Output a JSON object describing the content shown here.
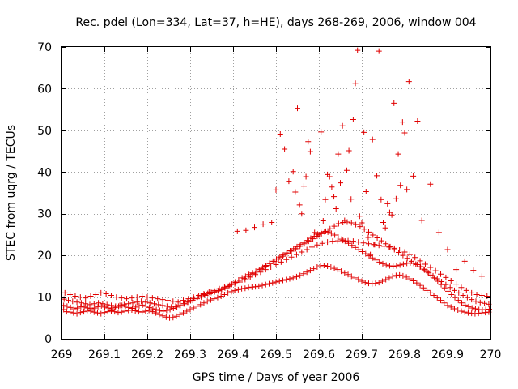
{
  "chart_data": {
    "type": "scatter",
    "title": "Rec. pdel (Lon=334, Lat=37, h=HE), days 268-269, 2006, window 004",
    "xlabel": "GPS time / Days of year 2006",
    "ylabel": "STEC from uqrg / TECUs",
    "xlim": [
      269,
      270
    ],
    "ylim": [
      0,
      70
    ],
    "xticks": [
      269,
      269.1,
      269.2,
      269.3,
      269.4,
      269.5,
      269.6,
      269.7,
      269.8,
      269.9,
      270
    ],
    "xtick_labels": [
      "269",
      "269.1",
      "269.2",
      "269.3",
      "269.4",
      "269.5",
      "269.6",
      "269.7",
      "269.8",
      "269.9",
      "270"
    ],
    "yticks": [
      0,
      10,
      20,
      30,
      40,
      50,
      60,
      70
    ],
    "ytick_labels": [
      "0",
      "10",
      "20",
      "30",
      "40",
      "50",
      "60",
      "70"
    ],
    "grid": true,
    "marker": "+",
    "color": "#e00000",
    "series": [
      {
        "name": "STEC",
        "x": [
          269.005,
          269.012,
          269.02,
          269.028,
          269.036,
          269.044,
          269.052,
          269.06,
          269.068,
          269.076,
          269.084,
          269.092,
          269.1,
          269.108,
          269.116,
          269.124,
          269.132,
          269.14,
          269.148,
          269.156,
          269.164,
          269.172,
          269.18,
          269.188,
          269.196,
          269.204,
          269.212,
          269.22,
          269.228,
          269.236,
          269.244,
          269.252,
          269.26,
          269.268,
          269.276,
          269.284,
          269.292,
          269.3,
          269.308,
          269.316,
          269.324,
          269.332,
          269.34,
          269.348,
          269.356,
          269.364,
          269.372,
          269.38,
          269.388,
          269.396,
          269.404,
          269.412,
          269.42,
          269.428,
          269.436,
          269.444,
          269.452,
          269.46,
          269.468,
          269.476,
          269.484,
          269.492,
          269.5,
          269.508,
          269.516,
          269.524,
          269.532,
          269.54,
          269.548,
          269.556,
          269.564,
          269.572,
          269.58,
          269.588,
          269.596,
          269.604,
          269.612,
          269.62,
          269.628,
          269.636,
          269.644,
          269.652,
          269.66,
          269.668,
          269.676,
          269.684,
          269.692,
          269.7,
          269.708,
          269.716,
          269.724,
          269.732,
          269.74,
          269.748,
          269.756,
          269.764,
          269.772,
          269.78,
          269.788,
          269.796,
          269.804,
          269.812,
          269.82,
          269.828,
          269.836,
          269.844,
          269.852,
          269.86,
          269.868,
          269.876,
          269.884,
          269.892,
          269.9,
          269.908,
          269.916,
          269.924,
          269.932,
          269.94,
          269.948,
          269.956,
          269.964,
          269.972,
          269.98,
          269.988,
          269.996,
          269.005,
          269.013,
          269.021,
          269.029,
          269.037,
          269.045,
          269.053,
          269.061,
          269.069,
          269.077,
          269.085,
          269.093,
          269.101,
          269.109,
          269.117,
          269.125,
          269.133,
          269.141,
          269.149,
          269.157,
          269.165,
          269.173,
          269.181,
          269.189,
          269.197,
          269.205,
          269.213,
          269.221,
          269.229,
          269.237,
          269.245,
          269.253,
          269.261,
          269.269,
          269.277,
          269.285,
          269.293,
          269.301,
          269.309,
          269.317,
          269.325,
          269.333,
          269.341,
          269.349,
          269.357,
          269.365,
          269.373,
          269.381,
          269.389,
          269.397,
          269.405,
          269.413,
          269.421,
          269.429,
          269.437,
          269.445,
          269.453,
          269.461,
          269.469,
          269.477,
          269.485,
          269.493,
          269.501,
          269.509,
          269.517,
          269.525,
          269.533,
          269.541,
          269.549,
          269.557,
          269.565,
          269.573,
          269.581,
          269.589,
          269.597,
          269.605,
          269.613,
          269.621,
          269.629,
          269.637,
          269.645,
          269.653,
          269.661,
          269.669,
          269.677,
          269.685,
          269.693,
          269.701,
          269.709,
          269.717,
          269.725,
          269.733,
          269.741,
          269.749,
          269.757,
          269.765,
          269.773,
          269.781,
          269.789,
          269.797,
          269.805,
          269.813,
          269.821,
          269.829,
          269.837,
          269.845,
          269.853,
          269.861,
          269.869,
          269.877,
          269.885,
          269.893,
          269.901,
          269.909,
          269.917,
          269.925,
          269.933,
          269.941,
          269.949,
          269.957,
          269.965,
          269.973,
          269.981,
          269.989,
          269.997,
          269.006,
          269.016,
          269.026,
          269.036,
          269.046,
          269.056,
          269.066,
          269.076,
          269.086,
          269.096,
          269.106,
          269.116,
          269.126,
          269.136,
          269.146,
          269.156,
          269.166,
          269.176,
          269.186,
          269.196,
          269.206,
          269.216,
          269.226,
          269.236,
          269.246,
          269.256,
          269.266,
          269.276,
          269.286,
          269.296,
          269.306,
          269.316,
          269.326,
          269.336,
          269.346,
          269.356,
          269.366,
          269.376,
          269.386,
          269.396,
          269.406,
          269.416,
          269.426,
          269.436,
          269.446,
          269.456,
          269.466,
          269.476,
          269.486,
          269.496,
          269.506,
          269.516,
          269.526,
          269.536,
          269.546,
          269.556,
          269.566,
          269.576,
          269.586,
          269.596,
          269.606,
          269.616,
          269.626,
          269.636,
          269.646,
          269.656,
          269.666,
          269.676,
          269.686,
          269.696,
          269.706,
          269.716,
          269.726,
          269.736,
          269.746,
          269.756,
          269.766,
          269.776,
          269.786,
          269.796,
          269.806,
          269.816,
          269.826,
          269.836,
          269.846,
          269.856,
          269.866,
          269.876,
          269.886,
          269.896,
          269.906,
          269.916,
          269.926,
          269.936,
          269.946,
          269.956,
          269.966,
          269.976,
          269.986,
          269.996,
          269.008,
          269.02,
          269.032,
          269.044,
          269.056,
          269.068,
          269.08,
          269.092,
          269.104,
          269.116,
          269.128,
          269.14,
          269.152,
          269.164,
          269.176,
          269.188,
          269.2,
          269.212,
          269.224,
          269.236,
          269.248,
          269.26,
          269.272,
          269.284,
          269.296,
          269.308,
          269.32,
          269.332,
          269.344,
          269.356,
          269.368,
          269.38,
          269.392,
          269.404,
          269.416,
          269.428,
          269.44,
          269.452,
          269.464,
          269.476,
          269.488,
          269.5,
          269.512,
          269.524,
          269.536,
          269.548,
          269.56,
          269.572,
          269.584,
          269.596,
          269.608,
          269.62,
          269.632,
          269.644,
          269.656,
          269.668,
          269.68,
          269.692,
          269.704,
          269.716,
          269.728,
          269.74,
          269.752,
          269.764,
          269.776,
          269.788,
          269.8,
          269.812,
          269.824,
          269.836,
          269.848,
          269.86,
          269.872,
          269.884,
          269.896,
          269.908,
          269.92,
          269.932,
          269.944,
          269.956,
          269.968,
          269.98,
          269.992,
          269.41,
          269.43,
          269.45,
          269.47,
          269.49,
          269.5,
          269.51,
          269.52,
          269.53,
          269.54,
          269.545,
          269.55,
          269.555,
          269.56,
          269.565,
          269.57,
          269.575,
          269.58,
          269.59,
          269.6,
          269.605,
          269.61,
          269.615,
          269.62,
          269.625,
          269.63,
          269.635,
          269.64,
          269.645,
          269.65,
          269.655,
          269.66,
          269.665,
          269.67,
          269.675,
          269.68,
          269.685,
          269.69,
          269.695,
          269.7,
          269.705,
          269.71,
          269.715,
          269.72,
          269.725,
          269.73,
          269.735,
          269.74,
          269.745,
          269.75,
          269.755,
          269.76,
          269.765,
          269.77,
          269.775,
          269.78,
          269.785,
          269.79,
          269.795,
          269.8,
          269.805,
          269.81,
          269.82,
          269.83,
          269.84,
          269.86,
          269.88,
          269.9,
          269.92,
          269.94,
          269.96,
          269.98
        ],
        "y": [
          7,
          6.5,
          6.4,
          6.2,
          6,
          6.3,
          6.5,
          6.8,
          6.6,
          6.4,
          6.2,
          6,
          6.3,
          6.5,
          6.7,
          6.5,
          6.3,
          6.4,
          6.6,
          6.8,
          6.9,
          6.7,
          6.5,
          6.4,
          6.6,
          6.8,
          6.5,
          6.2,
          5.8,
          5.5,
          5.2,
          5.0,
          5.1,
          5.4,
          5.8,
          6.2,
          6.6,
          7,
          7.4,
          7.8,
          8.2,
          8.6,
          9,
          9.3,
          9.6,
          9.9,
          10.2,
          10.6,
          11,
          11.3,
          11.6,
          11.8,
          12,
          12.1,
          12.3,
          12.4,
          12.5,
          12.6,
          12.8,
          13,
          13.2,
          13.4,
          13.6,
          13.8,
          14,
          14.2,
          14.4,
          14.6,
          14.9,
          15.2,
          15.6,
          16,
          16.4,
          16.8,
          17.2,
          17.5,
          17.6,
          17.4,
          17.2,
          16.9,
          16.6,
          16.2,
          15.8,
          15.4,
          15,
          14.6,
          14.2,
          13.8,
          13.5,
          13.3,
          13.2,
          13.3,
          13.5,
          13.8,
          14.2,
          14.6,
          15,
          15.2,
          15.3,
          15.1,
          14.8,
          14.4,
          13.9,
          13.4,
          12.8,
          12.2,
          11.6,
          11,
          10.4,
          9.8,
          9.2,
          8.6,
          8,
          7.6,
          7.2,
          6.9,
          6.6,
          6.4,
          6.2,
          6.1,
          6,
          6.1,
          6.2,
          6.3,
          6.4,
          8,
          7.8,
          7.5,
          7.2,
          7.4,
          7.7,
          7.6,
          7.4,
          7.2,
          7.4,
          7.7,
          7.9,
          7.6,
          7.4,
          7.2,
          7.5,
          7.8,
          8,
          7.8,
          7.5,
          7.3,
          7.6,
          7.9,
          8.1,
          7.8,
          7.5,
          7.2,
          7,
          6.8,
          6.6,
          6.8,
          7,
          7.3,
          7.6,
          8,
          8.4,
          8.8,
          9.2,
          9.6,
          10,
          10.3,
          10.6,
          10.9,
          11.1,
          11.3,
          11.5,
          11.8,
          12.2,
          12.6,
          13.1,
          13.6,
          14.1,
          14.6,
          15,
          15.4,
          15.8,
          16.2,
          16.6,
          17.1,
          17.6,
          18.1,
          18.6,
          19.1,
          19.6,
          20.1,
          20.6,
          21.1,
          21.6,
          22.1,
          22.6,
          23.1,
          23.6,
          24.1,
          24.6,
          25.1,
          25.5,
          25.7,
          25.6,
          25.3,
          24.9,
          24.4,
          23.9,
          23.4,
          22.9,
          22.4,
          21.9,
          21.4,
          20.9,
          20.4,
          19.9,
          19.4,
          18.9,
          18.4,
          18,
          17.7,
          17.5,
          17.4,
          17.5,
          17.7,
          17.9,
          18.1,
          18.2,
          18.1,
          17.8,
          17.3,
          16.7,
          16,
          15.3,
          14.6,
          13.8,
          13,
          12.2,
          11.4,
          10.6,
          9.9,
          9.2,
          8.6,
          8.1,
          7.7,
          7.4,
          7.2,
          7,
          6.9,
          7,
          7.1,
          9.5,
          9.2,
          9,
          8.8,
          8.6,
          8.4,
          8.2,
          8.4,
          8.6,
          8.4,
          8.2,
          8,
          7.8,
          8,
          8.2,
          8.4,
          8.6,
          8.8,
          9,
          8.8,
          8.6,
          8.4,
          8.2,
          8,
          7.8,
          7.6,
          7.8,
          8,
          8.4,
          8.8,
          9.2,
          9.6,
          10,
          10.4,
          10.8,
          11.2,
          11.6,
          12,
          12.5,
          13,
          13.5,
          14,
          14.5,
          15,
          15.6,
          16.2,
          16.8,
          17.4,
          18,
          18.6,
          19.2,
          19.8,
          20.4,
          21,
          21.6,
          22.2,
          22.8,
          23.4,
          24,
          24.6,
          25.2,
          25.8,
          26.4,
          27,
          27.6,
          27.9,
          28,
          27.8,
          27.4,
          26.9,
          26.3,
          25.6,
          24.9,
          24.2,
          23.5,
          22.8,
          22.1,
          21.4,
          20.7,
          20,
          19.3,
          18.6,
          17.9,
          17.2,
          16.5,
          15.8,
          15.1,
          14.4,
          13.7,
          13,
          12.3,
          11.6,
          11,
          10.4,
          9.9,
          9.4,
          9,
          8.7,
          8.5,
          8.3,
          11,
          10.6,
          10.2,
          10,
          9.8,
          10.2,
          10.6,
          11,
          10.8,
          10.4,
          10,
          9.8,
          9.6,
          9.8,
          10,
          10.2,
          10,
          9.8,
          9.6,
          9.4,
          9.2,
          9,
          8.8,
          9.2,
          9.6,
          10,
          10.4,
          10.8,
          11.2,
          11.6,
          12,
          12.4,
          12.8,
          13.2,
          13.6,
          14.2,
          14.8,
          15.4,
          16,
          16.6,
          17.2,
          17.8,
          18.4,
          19,
          19.6,
          20.2,
          20.8,
          21.4,
          22,
          22.5,
          22.9,
          23.2,
          23.4,
          23.5,
          23.6,
          23.5,
          23.4,
          23.2,
          23,
          22.8,
          22.6,
          22.4,
          22.2,
          22,
          21.7,
          21.3,
          20.8,
          20.2,
          19.5,
          18.7,
          17.9,
          17.1,
          16.3,
          15.5,
          14.7,
          13.9,
          13.1,
          12.3,
          11.6,
          11,
          10.6,
          10.4,
          10.2,
          25.8,
          26,
          26.7,
          27.5,
          27.9,
          35.7,
          49.1,
          45.5,
          37.8,
          40.1,
          35.2,
          55.3,
          32.1,
          30,
          36.6,
          38.9,
          47.3,
          44.9,
          25.5,
          24.9,
          49.6,
          28.3,
          33.4,
          39.4,
          38.9,
          36.4,
          34.1,
          31.2,
          44.3,
          37.4,
          51.1,
          28.4,
          40.4,
          45.1,
          33.5,
          52.6,
          61.3,
          69.2,
          29.4,
          27.8,
          49.5,
          35.3,
          24.3,
          20.2,
          47.8,
          22.6,
          39.1,
          69,
          33.4,
          27.9,
          26.6,
          32.4,
          30.3,
          29.7,
          56.5,
          33.6,
          44.3,
          36.8,
          52,
          49.4,
          35.8,
          61.7,
          39,
          52.2,
          28.4,
          37.1,
          25.5,
          21.4,
          16.6,
          18.6,
          16.4,
          15
        ]
      }
    ]
  }
}
